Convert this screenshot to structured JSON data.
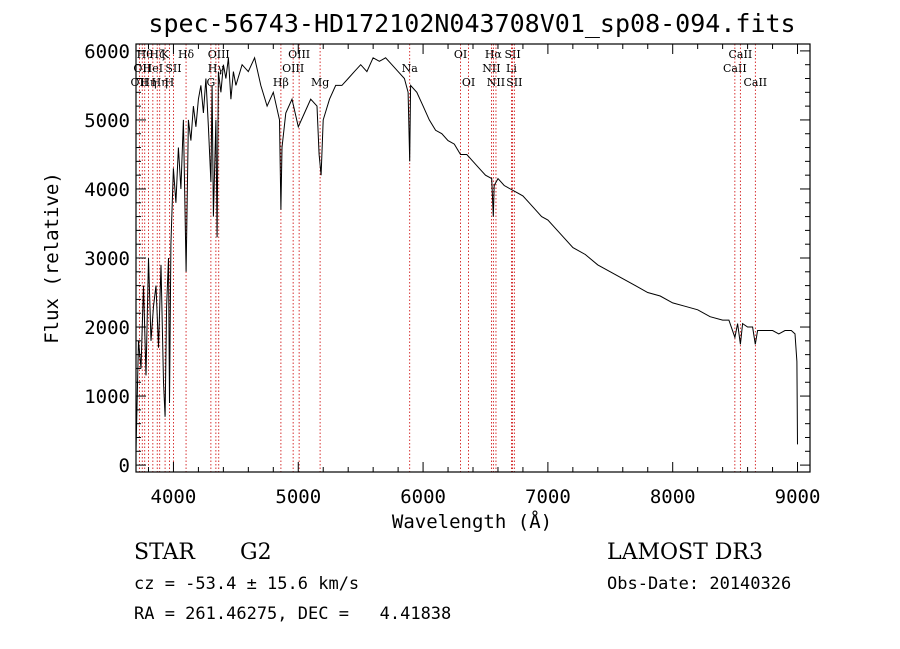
{
  "chart_data": {
    "type": "line",
    "title": "spec-56743-HD172102N043708V01_sp08-094.fits",
    "xlabel": "Wavelength (Å)",
    "ylabel": "Flux (relative)",
    "xlim": [
      3700,
      9100
    ],
    "ylim": [
      -100,
      6100
    ],
    "xticks": [
      4000,
      5000,
      6000,
      7000,
      8000,
      9000
    ],
    "yticks": [
      0,
      1000,
      2000,
      3000,
      4000,
      5000,
      6000
    ],
    "grid": false,
    "series": [
      {
        "name": "flux",
        "x": [
          3700,
          3720,
          3740,
          3760,
          3780,
          3800,
          3820,
          3840,
          3860,
          3880,
          3900,
          3920,
          3933,
          3945,
          3960,
          3968,
          3980,
          4000,
          4020,
          4040,
          4060,
          4080,
          4101,
          4120,
          4140,
          4160,
          4180,
          4200,
          4220,
          4240,
          4260,
          4280,
          4300,
          4310,
          4320,
          4340,
          4350,
          4360,
          4380,
          4400,
          4420,
          4440,
          4460,
          4480,
          4500,
          4550,
          4600,
          4650,
          4700,
          4750,
          4800,
          4850,
          4861,
          4870,
          4900,
          4950,
          5000,
          5050,
          5100,
          5150,
          5167,
          5183,
          5200,
          5250,
          5300,
          5350,
          5400,
          5450,
          5500,
          5550,
          5600,
          5650,
          5700,
          5750,
          5800,
          5850,
          5880,
          5893,
          5900,
          5950,
          6000,
          6050,
          6100,
          6150,
          6200,
          6250,
          6300,
          6350,
          6400,
          6450,
          6500,
          6550,
          6563,
          6570,
          6600,
          6650,
          6700,
          6750,
          6800,
          6850,
          6900,
          6950,
          7000,
          7100,
          7200,
          7300,
          7400,
          7500,
          7600,
          7700,
          7800,
          7900,
          8000,
          8100,
          8200,
          8300,
          8400,
          8450,
          8498,
          8520,
          8542,
          8560,
          8600,
          8640,
          8662,
          8680,
          8700,
          8750,
          8800,
          8850,
          8900,
          8950,
          8980,
          8995,
          9000
        ],
        "y": [
          200,
          1800,
          1400,
          2600,
          1300,
          3000,
          1800,
          2300,
          2600,
          1700,
          2900,
          1200,
          700,
          2300,
          3000,
          900,
          3200,
          4300,
          3800,
          4600,
          4000,
          5000,
          2800,
          5000,
          4700,
          5200,
          4900,
          5300,
          5500,
          5100,
          5600,
          4900,
          4100,
          5500,
          3600,
          5000,
          3300,
          5700,
          5400,
          5800,
          5600,
          5900,
          5300,
          5700,
          5500,
          5800,
          5700,
          5900,
          5500,
          5200,
          5400,
          5000,
          3700,
          4600,
          5100,
          5300,
          4900,
          5100,
          5300,
          5200,
          4500,
          4200,
          5000,
          5300,
          5500,
          5500,
          5600,
          5700,
          5800,
          5700,
          5900,
          5850,
          5900,
          5800,
          5700,
          5600,
          5400,
          4400,
          5500,
          5400,
          5200,
          5000,
          4850,
          4800,
          4700,
          4650,
          4500,
          4500,
          4400,
          4300,
          4200,
          4150,
          3600,
          4050,
          4150,
          4050,
          4000,
          3950,
          3900,
          3800,
          3700,
          3600,
          3550,
          3350,
          3150,
          3050,
          2900,
          2800,
          2700,
          2600,
          2500,
          2450,
          2350,
          2300,
          2250,
          2150,
          2100,
          2100,
          1850,
          2050,
          1750,
          2050,
          2000,
          2000,
          1750,
          1950,
          1950,
          1950,
          1950,
          1900,
          1950,
          1950,
          1900,
          1500,
          300
        ]
      }
    ],
    "line_markers": [
      {
        "wl": 3727,
        "label": "OII",
        "row": 3
      },
      {
        "wl": 3750,
        "label": "OII",
        "row": 2
      },
      {
        "wl": 3770,
        "label": "Hθ",
        "row": 1
      },
      {
        "wl": 3800,
        "label": "Hη",
        "row": 3
      },
      {
        "wl": 3835,
        "label": "HeI",
        "row": 2
      },
      {
        "wl": 3870,
        "label": "Hζ",
        "row": 1
      },
      {
        "wl": 3890,
        "label": "Hη",
        "row": 3
      },
      {
        "wl": 3933,
        "label": "K",
        "row": 1
      },
      {
        "wl": 3968,
        "label": "H",
        "row": 3
      },
      {
        "wl": 4000,
        "label": "SII",
        "row": 2
      },
      {
        "wl": 4101,
        "label": "Hδ",
        "row": 1
      },
      {
        "wl": 4300,
        "label": "G",
        "row": 3
      },
      {
        "wl": 4340,
        "label": "Hγ",
        "row": 2
      },
      {
        "wl": 4363,
        "label": "OIII",
        "row": 1
      },
      {
        "wl": 4861,
        "label": "Hβ",
        "row": 3
      },
      {
        "wl": 4959,
        "label": "OIII",
        "row": 2
      },
      {
        "wl": 5007,
        "label": "OIII",
        "row": 1
      },
      {
        "wl": 5175,
        "label": "Mg",
        "row": 3
      },
      {
        "wl": 5893,
        "label": "Na",
        "row": 2
      },
      {
        "wl": 6300,
        "label": "OI",
        "row": 1
      },
      {
        "wl": 6364,
        "label": "OI",
        "row": 3
      },
      {
        "wl": 6548,
        "label": "NII",
        "row": 2
      },
      {
        "wl": 6563,
        "label": "Hα",
        "row": 1
      },
      {
        "wl": 6584,
        "label": "NII",
        "row": 3
      },
      {
        "wl": 6708,
        "label": "Li",
        "row": 2
      },
      {
        "wl": 6717,
        "label": "SII",
        "row": 1
      },
      {
        "wl": 6731,
        "label": "SII",
        "row": 3
      },
      {
        "wl": 8498,
        "label": "CaII",
        "row": 2
      },
      {
        "wl": 8542,
        "label": "CaII",
        "row": 1
      },
      {
        "wl": 8662,
        "label": "CaII",
        "row": 3
      }
    ]
  },
  "info": {
    "object_class": "STAR",
    "subclass": "G2",
    "survey": "LAMOST DR3",
    "cz": "cz = -53.4 ± 15.6 km/s",
    "obs_date": "Obs-Date: 20140326",
    "coords": "RA = 261.46275, DEC =   4.41838"
  },
  "colors": {
    "spectrum": "#000000",
    "marker": "#cc0000",
    "axis": "#000000"
  }
}
